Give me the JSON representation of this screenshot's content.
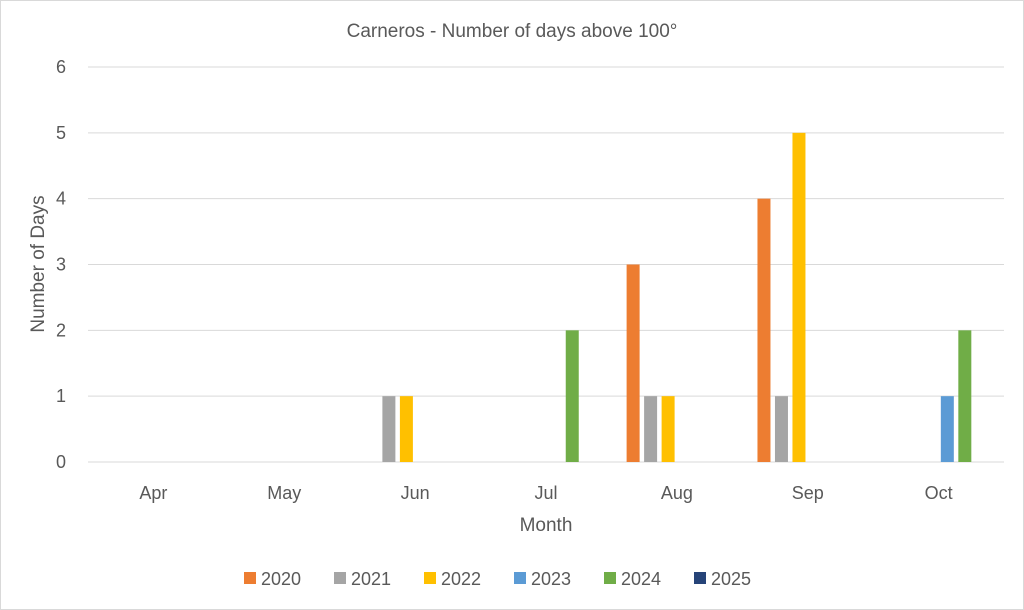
{
  "chart_data": {
    "type": "bar",
    "title": "Carneros - Number of days above 100°",
    "xlabel": "Month",
    "ylabel": "Number of Days",
    "ylim": [
      0,
      6
    ],
    "yticks": [
      "0",
      "1",
      "2",
      "3",
      "4",
      "5",
      "6"
    ],
    "grid": true,
    "legend_position": "bottom",
    "categories": [
      "Apr",
      "May",
      "Jun",
      "Jul",
      "Aug",
      "Sep",
      "Oct"
    ],
    "series": [
      {
        "name": "2020",
        "color": "#ED7D31",
        "values": [
          0,
          0,
          0,
          0,
          3,
          4,
          0
        ]
      },
      {
        "name": "2021",
        "color": "#A5A5A5",
        "values": [
          0,
          0,
          1,
          0,
          1,
          1,
          0
        ]
      },
      {
        "name": "2022",
        "color": "#FFC000",
        "values": [
          0,
          0,
          1,
          0,
          1,
          5,
          0
        ]
      },
      {
        "name": "2023",
        "color": "#5B9BD5",
        "values": [
          0,
          0,
          0,
          0,
          0,
          0,
          1
        ]
      },
      {
        "name": "2024",
        "color": "#70AD47",
        "values": [
          0,
          0,
          0,
          2,
          0,
          0,
          2
        ]
      },
      {
        "name": "2025",
        "color": "#264478",
        "values": [
          0,
          0,
          0,
          0,
          0,
          0,
          0
        ]
      }
    ]
  }
}
